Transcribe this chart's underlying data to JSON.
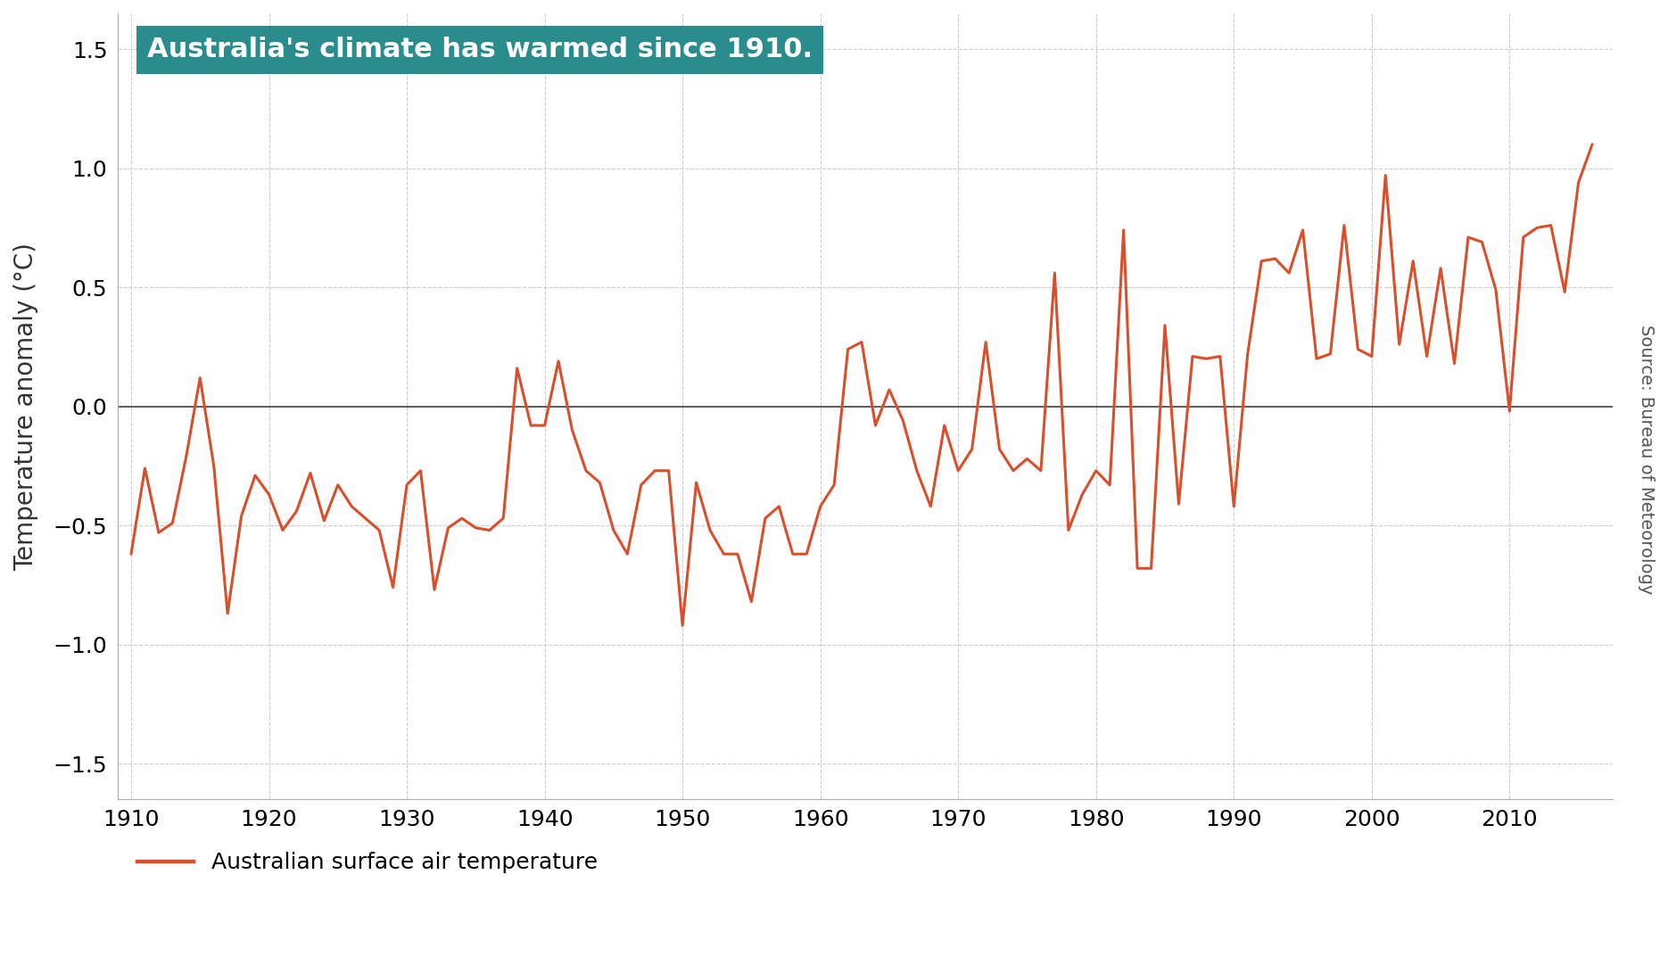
{
  "years": [
    1910,
    1911,
    1912,
    1913,
    1914,
    1915,
    1916,
    1917,
    1918,
    1919,
    1920,
    1921,
    1922,
    1923,
    1924,
    1925,
    1926,
    1927,
    1928,
    1929,
    1930,
    1931,
    1932,
    1933,
    1934,
    1935,
    1936,
    1937,
    1938,
    1939,
    1940,
    1941,
    1942,
    1943,
    1944,
    1945,
    1946,
    1947,
    1948,
    1949,
    1950,
    1951,
    1952,
    1953,
    1954,
    1955,
    1956,
    1957,
    1958,
    1959,
    1960,
    1961,
    1962,
    1963,
    1964,
    1965,
    1966,
    1967,
    1968,
    1969,
    1970,
    1971,
    1972,
    1973,
    1974,
    1975,
    1976,
    1977,
    1978,
    1979,
    1980,
    1981,
    1982,
    1983,
    1984,
    1985,
    1986,
    1987,
    1988,
    1989,
    1990,
    1991,
    1992,
    1993,
    1994,
    1995,
    1996,
    1997,
    1998,
    1999,
    2000,
    2001,
    2002,
    2003,
    2004,
    2005,
    2006,
    2007,
    2008,
    2009,
    2010,
    2011,
    2012,
    2013,
    2014,
    2015,
    2016
  ],
  "anomalies": [
    -0.62,
    -0.26,
    -0.53,
    -0.49,
    -0.21,
    0.12,
    -0.25,
    -0.87,
    -0.46,
    -0.29,
    -0.37,
    -0.52,
    -0.44,
    -0.28,
    -0.48,
    -0.33,
    -0.42,
    -0.47,
    -0.52,
    -0.76,
    -0.33,
    -0.27,
    -0.77,
    -0.51,
    -0.47,
    -0.51,
    -0.52,
    -0.47,
    0.16,
    -0.08,
    -0.08,
    0.19,
    -0.1,
    -0.27,
    -0.32,
    -0.52,
    -0.62,
    -0.33,
    -0.27,
    -0.27,
    -0.92,
    -0.32,
    -0.52,
    -0.62,
    -0.62,
    -0.82,
    -0.47,
    -0.42,
    -0.62,
    -0.62,
    -0.42,
    -0.33,
    0.24,
    0.27,
    -0.08,
    0.07,
    -0.06,
    -0.27,
    -0.42,
    -0.08,
    -0.27,
    -0.18,
    0.27,
    -0.18,
    -0.27,
    -0.22,
    -0.27,
    0.56,
    -0.52,
    -0.37,
    -0.27,
    -0.33,
    0.74,
    -0.68,
    -0.68,
    0.34,
    -0.41,
    0.21,
    0.2,
    0.21,
    -0.42,
    0.22,
    0.61,
    0.62,
    0.56,
    0.74,
    0.2,
    0.22,
    0.76,
    0.24,
    0.21,
    0.97,
    0.26,
    0.61,
    0.21,
    0.58,
    0.18,
    0.71,
    0.69,
    0.49,
    -0.02,
    0.71,
    0.75,
    0.76,
    0.48,
    0.94,
    1.1
  ],
  "line_color": "#d94e2b",
  "line_width": 2.2,
  "background_color": "#ffffff",
  "grid_color": "#cccccc",
  "annotation_bg": "#2a8c8c",
  "annotation_text": "Australia's climate has warmed since 1910.",
  "annotation_text_color": "#ffffff",
  "ylabel": "Temperature anomaly (°C)",
  "source_text": "Source: Bureau of Meteorology",
  "legend_label": "Australian surface air temperature",
  "xlim": [
    1909.0,
    2017.5
  ],
  "ylim": [
    -1.65,
    1.65
  ],
  "yticks": [
    -1.5,
    -1.0,
    -0.5,
    0.0,
    0.5,
    1.0,
    1.5
  ],
  "xticks": [
    1910,
    1920,
    1930,
    1940,
    1950,
    1960,
    1970,
    1980,
    1990,
    2000,
    2010
  ],
  "zero_line_color": "#444444",
  "annotation_fontsize": 22,
  "axis_fontsize": 20,
  "tick_fontsize": 18,
  "legend_fontsize": 18,
  "source_fontsize": 14
}
